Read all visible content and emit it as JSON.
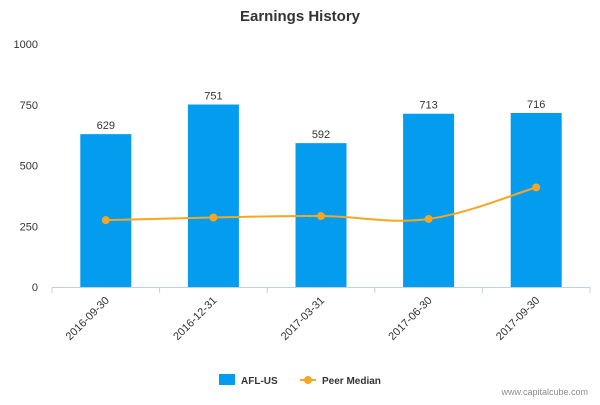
{
  "chart_data": {
    "type": "bar",
    "title": "Earnings History",
    "categories": [
      "2016-09-30",
      "2016-12-31",
      "2017-03-31",
      "2017-06-30",
      "2017-09-30"
    ],
    "series": [
      {
        "name": "AFL-US",
        "type": "bar",
        "color": "#039cef",
        "values": [
          629,
          751,
          592,
          713,
          716
        ],
        "data_labels": [
          "629",
          "751",
          "592",
          "713",
          "716"
        ]
      },
      {
        "name": "Peer Median",
        "type": "line",
        "color": "#f5a623",
        "values": [
          275,
          286,
          292,
          280,
          410
        ]
      }
    ],
    "ylim": [
      0,
      1000
    ],
    "yticks": [
      "0",
      "250",
      "500",
      "750",
      "1000"
    ],
    "ytick_values": [
      0,
      250,
      500,
      750,
      1000
    ],
    "legend_position": "bottom-center",
    "grid": false
  },
  "credit": "www.capitalcube.com"
}
